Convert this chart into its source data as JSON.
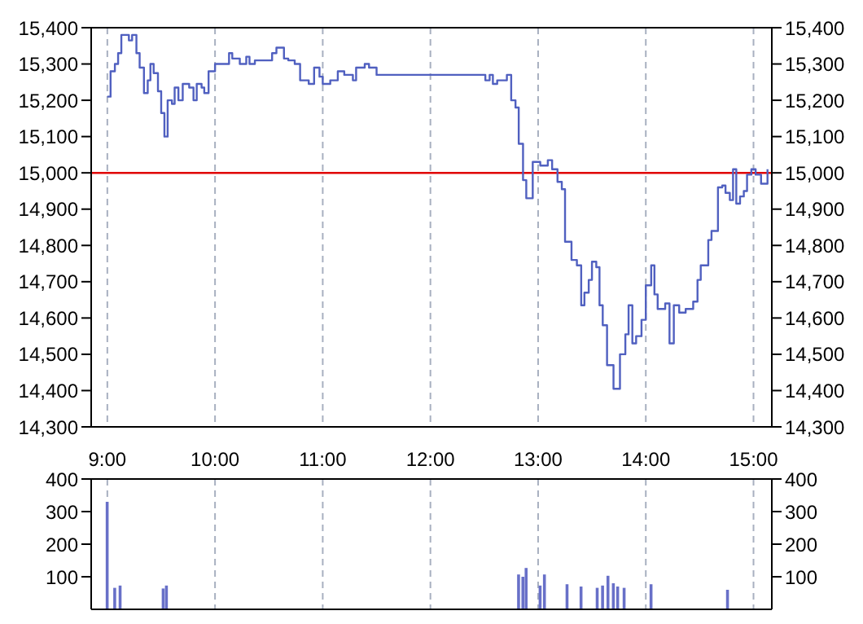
{
  "chart_data": [
    {
      "type": "step",
      "color": "#5060c0",
      "marker": "none",
      "grid": true,
      "tick_labels": "y",
      "x": [
        9.0,
        9.03,
        9.07,
        9.1,
        9.13,
        9.2,
        9.23,
        9.27,
        9.3,
        9.34,
        9.375,
        9.4,
        9.43,
        9.47,
        9.5,
        9.53,
        9.56,
        9.6,
        9.625,
        9.66,
        9.7,
        9.76,
        9.8,
        9.83,
        9.875,
        9.9,
        9.94,
        10.0,
        10.13,
        10.16,
        10.23,
        10.29,
        10.32,
        10.37,
        10.53,
        10.57,
        10.64,
        10.68,
        10.74,
        10.79,
        10.87,
        10.92,
        10.97,
        11.0,
        11.07,
        11.14,
        11.2,
        11.28,
        11.31,
        11.39,
        11.43,
        11.5,
        12.51,
        12.55,
        12.58,
        12.62,
        12.71,
        12.75,
        12.79,
        12.82,
        12.86,
        12.89,
        12.95,
        13.02,
        13.09,
        13.13,
        13.18,
        13.22,
        13.25,
        13.31,
        13.36,
        13.4,
        13.43,
        13.47,
        13.5,
        13.54,
        13.57,
        13.6,
        13.64,
        13.7,
        13.76,
        13.81,
        13.84,
        13.875,
        13.91,
        13.96,
        14.0,
        14.05,
        14.08,
        14.11,
        14.18,
        14.22,
        14.26,
        14.31,
        14.37,
        14.44,
        14.48,
        14.51,
        14.58,
        14.61,
        14.67,
        14.71,
        14.74,
        14.78,
        14.81,
        14.84,
        14.875,
        14.91,
        14.94,
        14.98,
        15.02,
        15.07,
        15.13
      ],
      "values": [
        15210,
        15280,
        15300,
        15330,
        15380,
        15365,
        15380,
        15330,
        15290,
        15220,
        15255,
        15300,
        15275,
        15225,
        15165,
        15100,
        15200,
        15190,
        15235,
        15200,
        15245,
        15235,
        15200,
        15245,
        15235,
        15220,
        15280,
        15300,
        15330,
        15315,
        15300,
        15320,
        15300,
        15310,
        15330,
        15345,
        15315,
        15310,
        15300,
        15255,
        15245,
        15290,
        15265,
        15245,
        15255,
        15280,
        15270,
        15255,
        15290,
        15300,
        15290,
        15270,
        15255,
        15270,
        15245,
        15255,
        15270,
        15200,
        15180,
        15080,
        14980,
        14930,
        15030,
        15020,
        15035,
        15010,
        14975,
        14955,
        14810,
        14760,
        14745,
        14635,
        14670,
        14705,
        14755,
        14740,
        14635,
        14580,
        14470,
        14405,
        14500,
        14555,
        14635,
        14530,
        14550,
        14595,
        14690,
        14745,
        14665,
        14625,
        14640,
        14530,
        14635,
        14615,
        14625,
        14645,
        14705,
        14745,
        14815,
        14840,
        14960,
        14965,
        14945,
        14925,
        15010,
        14915,
        14935,
        14950,
        14995,
        15010,
        14995,
        14970,
        15010
      ],
      "xlim": [
        8.85,
        15.17
      ],
      "xticks": [
        {
          "value": 9,
          "label": null
        },
        {
          "value": 10,
          "label": null
        },
        {
          "value": 11,
          "label": null
        },
        {
          "value": 12,
          "label": null
        },
        {
          "value": 13,
          "label": null
        },
        {
          "value": 14,
          "label": null
        },
        {
          "value": 15,
          "label": null
        }
      ],
      "ylim": [
        14300,
        15400
      ],
      "yticks": [
        {
          "value": 14300,
          "label": "14,300"
        },
        {
          "value": 14400,
          "label": "14,400"
        },
        {
          "value": 14500,
          "label": "14,500"
        },
        {
          "value": 14600,
          "label": "14,600"
        },
        {
          "value": 14700,
          "label": "14,700"
        },
        {
          "value": 14800,
          "label": "14,800"
        },
        {
          "value": 14900,
          "label": "14,900"
        },
        {
          "value": 15000,
          "label": "15,000"
        },
        {
          "value": 15100,
          "label": "15,100"
        },
        {
          "value": 15200,
          "label": "15,200"
        },
        {
          "value": 15300,
          "label": "15,300"
        },
        {
          "value": 15400,
          "label": "15,400"
        }
      ],
      "y2lim": [
        14300,
        15400
      ],
      "y2ticks": [
        {
          "value": 14300,
          "label": "14,300"
        },
        {
          "value": 14400,
          "label": "14,400"
        },
        {
          "value": 14500,
          "label": "14,500"
        },
        {
          "value": 14600,
          "label": "14,600"
        },
        {
          "value": 14700,
          "label": "14,700"
        },
        {
          "value": 14800,
          "label": "14,800"
        },
        {
          "value": 14900,
          "label": "14,900"
        },
        {
          "value": 15000,
          "label": "15,000"
        },
        {
          "value": 15100,
          "label": "15,100"
        },
        {
          "value": 15200,
          "label": "15,200"
        },
        {
          "value": 15300,
          "label": "15,300"
        },
        {
          "value": 15400,
          "label": "15,400"
        }
      ],
      "ref_lines": [
        {
          "axis": "y",
          "value": 15000,
          "color": "#e00000"
        }
      ]
    },
    {
      "type": "bar",
      "color": "#6870c8",
      "grid": true,
      "x": [
        9.0,
        9.07,
        9.12,
        9.52,
        9.55,
        12.82,
        12.86,
        12.89,
        13.02,
        13.06,
        13.27,
        13.4,
        13.55,
        13.6,
        13.65,
        13.7,
        13.74,
        13.8,
        14.05,
        14.76
      ],
      "values": [
        330,
        66,
        73,
        64,
        73,
        107,
        100,
        127,
        73,
        107,
        77,
        70,
        66,
        73,
        103,
        80,
        70,
        66,
        77,
        60
      ],
      "xlim": [
        8.85,
        15.17
      ],
      "xticks": [
        {
          "value": 9,
          "label": "9:00"
        },
        {
          "value": 10,
          "label": "10:00"
        },
        {
          "value": 11,
          "label": "11:00"
        },
        {
          "value": 12,
          "label": "12:00"
        },
        {
          "value": 13,
          "label": "13:00"
        },
        {
          "value": 14,
          "label": "14:00"
        },
        {
          "value": 15,
          "label": "15:00"
        }
      ],
      "ylim": [
        0,
        400
      ],
      "yticks": [
        100,
        200,
        300,
        400
      ],
      "y2lim": [
        0,
        400
      ],
      "y2ticks": [
        100,
        200,
        300,
        400
      ]
    }
  ]
}
